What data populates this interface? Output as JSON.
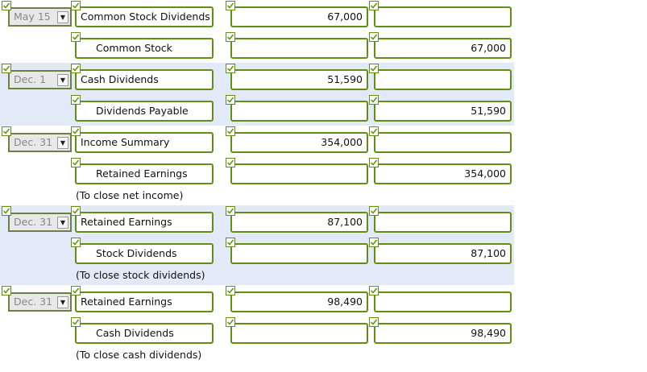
{
  "entries": [
    {
      "date": "May 15",
      "lines": [
        {
          "account": "Common Stock Dividends",
          "debit": "67,000"
        },
        {
          "account": "Common Stock",
          "credit": "67,000"
        }
      ]
    },
    {
      "date": "Dec. 1",
      "lines": [
        {
          "account": "Cash Dividends",
          "debit": "51,590"
        },
        {
          "account": "Dividends Payable",
          "credit": "51,590"
        }
      ]
    },
    {
      "date": "Dec. 31",
      "lines": [
        {
          "account": "Income Summary",
          "debit": "354,000"
        },
        {
          "account": "Retained Earnings",
          "credit": "354,000"
        }
      ],
      "note": "(To close net income)"
    },
    {
      "date": "Dec. 31",
      "lines": [
        {
          "account": "Retained Earnings",
          "debit": "87,100"
        },
        {
          "account": "Stock Dividends",
          "credit": "87,100"
        }
      ],
      "note": "(To close stock dividends)"
    },
    {
      "date": "Dec. 31",
      "lines": [
        {
          "account": "Retained Earnings",
          "debit": "98,490"
        },
        {
          "account": "Cash Dividends",
          "credit": "98,490"
        }
      ],
      "note": "(To close cash dividends)"
    }
  ]
}
